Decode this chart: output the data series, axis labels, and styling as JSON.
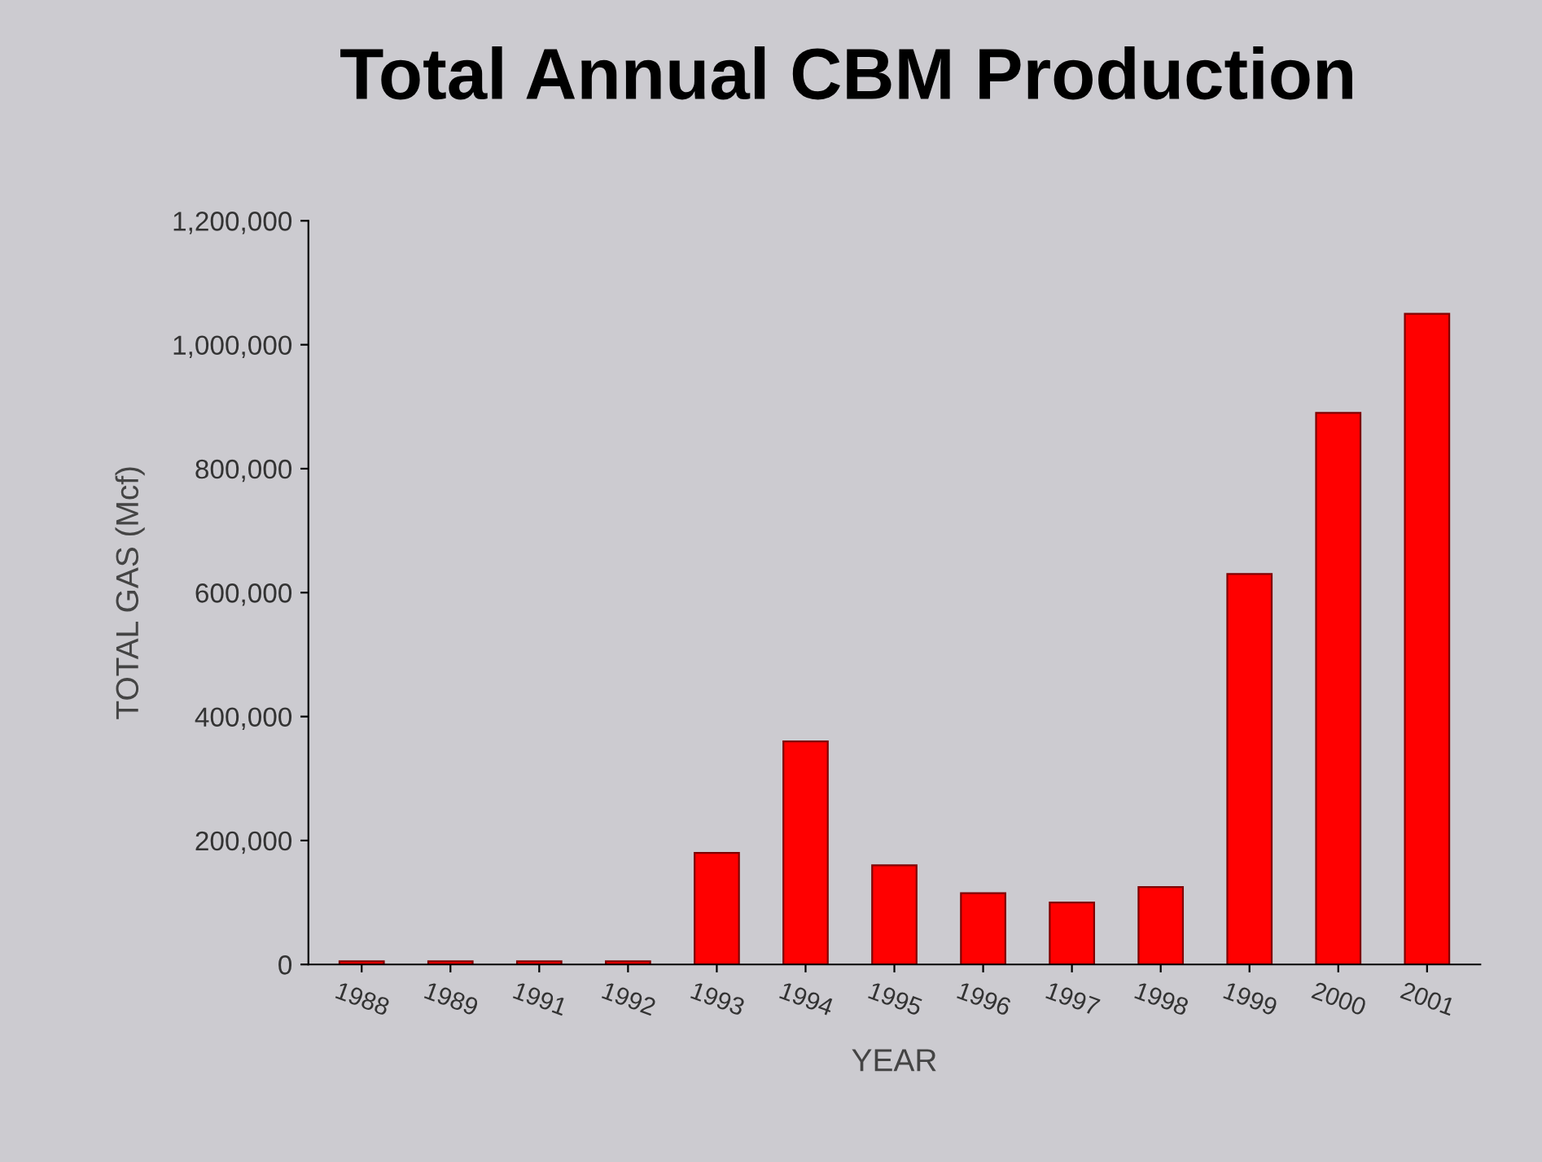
{
  "chart_data": {
    "type": "bar",
    "title": "Total Annual CBM Production",
    "xlabel": "YEAR",
    "ylabel": "TOTAL GAS (Mcf)",
    "categories": [
      "1988",
      "1989",
      "1991",
      "1992",
      "1993",
      "1994",
      "1995",
      "1996",
      "1997",
      "1998",
      "1999",
      "2000",
      "2001"
    ],
    "values": [
      5000,
      5000,
      5000,
      5000,
      180000,
      360000,
      160000,
      115000,
      100000,
      125000,
      630000,
      890000,
      1050000
    ],
    "color": "#ff0000",
    "ylim": [
      0,
      1200000
    ],
    "yticks": [
      {
        "value": 0,
        "label": "0"
      },
      {
        "value": 200000,
        "label": "200,000"
      },
      {
        "value": 400000,
        "label": "400,000"
      },
      {
        "value": 600000,
        "label": "600,000"
      },
      {
        "value": 800000,
        "label": "800,000"
      },
      {
        "value": 1000000,
        "label": "1,000,000"
      },
      {
        "value": 1200000,
        "label": "1,200,000"
      }
    ],
    "grid": false
  }
}
